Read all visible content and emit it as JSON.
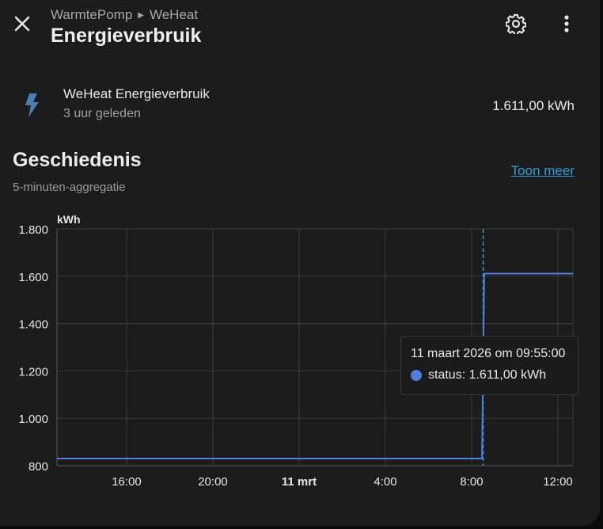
{
  "header": {
    "breadcrumb": [
      "WarmtePomp",
      "WeHeat"
    ],
    "title": "Energieverbruik"
  },
  "icons": {
    "close": "close-icon",
    "settings": "gear-icon",
    "more": "dots-vertical-icon",
    "entity": "lightning-bolt-icon"
  },
  "entity": {
    "name": "WeHeat Energieverbruik",
    "last_changed": "3 uur geleden",
    "state": "1.611,00 kWh"
  },
  "history": {
    "title": "Geschiedenis",
    "subtitle": "5-minuten-aggregatie",
    "show_more": "Toon meer"
  },
  "colors": {
    "series": "#4f7fe0",
    "link": "#2f9ed8",
    "entity_icon": "#4a7fb8"
  },
  "chart_data": {
    "type": "line",
    "ylabel": "kWh",
    "ylim": [
      800,
      1800
    ],
    "y_ticks": [
      "1.800",
      "1.600",
      "1.400",
      "1.200",
      "1.000",
      "800"
    ],
    "x_ticks": [
      "16:00",
      "20:00",
      "11 mrt",
      "4:00",
      "8:00",
      "12:00"
    ],
    "x_range_hours": [
      -3.3,
      12.7
    ],
    "grid": true,
    "series": [
      {
        "name": "status",
        "step": true,
        "x": [
          -3.3,
          9.88,
          9.95,
          12.7
        ],
        "y": [
          830,
          830,
          1611,
          1611
        ]
      }
    ],
    "cursor_x": 9.9167,
    "tooltip": {
      "title": "11 maart 2026 om 09:55:00",
      "label": "status: 1.611,00 kWh"
    }
  }
}
